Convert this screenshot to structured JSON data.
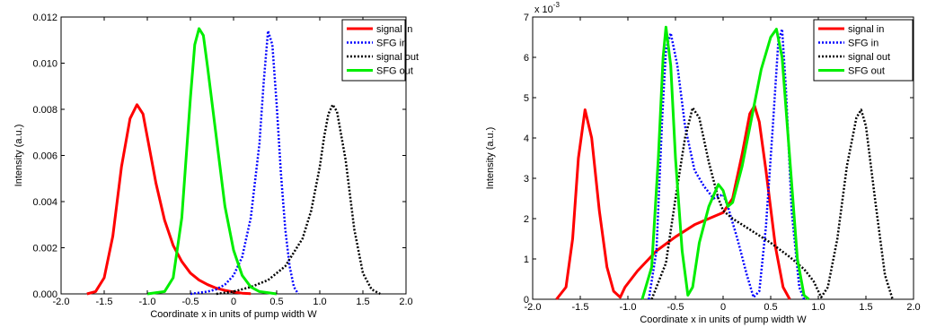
{
  "chart_data": [
    {
      "type": "line",
      "title": "",
      "xlabel": "Coordinate x in units of pump width W",
      "ylabel": "Intensity (a.u.)",
      "xlim": [
        -2.0,
        2.0
      ],
      "ylim": [
        0,
        0.012
      ],
      "x_ticks": [
        "-2.0",
        "-1.5",
        "-1.0",
        "-0.5",
        "0",
        "0.5",
        "1.0",
        "1.5",
        "2.0"
      ],
      "y_ticks": [
        "0.000",
        "0.002",
        "0.004",
        "0.006",
        "0.008",
        "0.010",
        "0.012"
      ],
      "y_exponent": "",
      "grid": false,
      "legend_position": "top-right",
      "series": [
        {
          "name": "signal in",
          "color": "#ff0000",
          "style": "solid",
          "points": [
            [
              -1.7,
              0
            ],
            [
              -1.6,
              0.0001
            ],
            [
              -1.5,
              0.0007
            ],
            [
              -1.4,
              0.0025
            ],
            [
              -1.3,
              0.0055
            ],
            [
              -1.2,
              0.0076
            ],
            [
              -1.12,
              0.0082
            ],
            [
              -1.05,
              0.0078
            ],
            [
              -1.0,
              0.0068
            ],
            [
              -0.9,
              0.0048
            ],
            [
              -0.8,
              0.0032
            ],
            [
              -0.7,
              0.0021
            ],
            [
              -0.6,
              0.0014
            ],
            [
              -0.5,
              0.0009
            ],
            [
              -0.4,
              0.0006
            ],
            [
              -0.3,
              0.0004
            ],
            [
              -0.2,
              0.00025
            ],
            [
              -0.1,
              0.00015
            ],
            [
              0.0,
              8e-05
            ],
            [
              0.1,
              3e-05
            ],
            [
              0.2,
              1e-05
            ]
          ]
        },
        {
          "name": "SFG in",
          "color": "#0000ff",
          "style": "dotted",
          "points": [
            [
              -0.5,
              0
            ],
            [
              -0.3,
              0.0001
            ],
            [
              -0.2,
              0.0002
            ],
            [
              -0.1,
              0.0004
            ],
            [
              0.0,
              0.0008
            ],
            [
              0.1,
              0.0016
            ],
            [
              0.2,
              0.0033
            ],
            [
              0.3,
              0.0065
            ],
            [
              0.35,
              0.0092
            ],
            [
              0.4,
              0.0114
            ],
            [
              0.45,
              0.0108
            ],
            [
              0.5,
              0.0082
            ],
            [
              0.55,
              0.0052
            ],
            [
              0.6,
              0.0028
            ],
            [
              0.65,
              0.0012
            ],
            [
              0.7,
              0.0003
            ],
            [
              0.75,
              0
            ]
          ]
        },
        {
          "name": "signal out",
          "color": "#000000",
          "style": "dotted",
          "points": [
            [
              -0.2,
              0
            ],
            [
              0.0,
              0.0001
            ],
            [
              0.2,
              0.0003
            ],
            [
              0.4,
              0.0006
            ],
            [
              0.6,
              0.0012
            ],
            [
              0.8,
              0.0024
            ],
            [
              0.9,
              0.0036
            ],
            [
              1.0,
              0.0055
            ],
            [
              1.05,
              0.0068
            ],
            [
              1.1,
              0.0078
            ],
            [
              1.15,
              0.0082
            ],
            [
              1.2,
              0.0079
            ],
            [
              1.3,
              0.0058
            ],
            [
              1.4,
              0.0028
            ],
            [
              1.5,
              0.0009
            ],
            [
              1.6,
              0.0002
            ],
            [
              1.7,
              0
            ]
          ]
        },
        {
          "name": "SFG out",
          "color": "#00ee00",
          "style": "solid",
          "points": [
            [
              -1.0,
              0
            ],
            [
              -0.8,
              0.0001
            ],
            [
              -0.7,
              0.0007
            ],
            [
              -0.6,
              0.0033
            ],
            [
              -0.5,
              0.0085
            ],
            [
              -0.45,
              0.0108
            ],
            [
              -0.4,
              0.0115
            ],
            [
              -0.35,
              0.0112
            ],
            [
              -0.3,
              0.0098
            ],
            [
              -0.2,
              0.0068
            ],
            [
              -0.1,
              0.0038
            ],
            [
              0.0,
              0.0019
            ],
            [
              0.1,
              0.0008
            ],
            [
              0.2,
              0.0003
            ],
            [
              0.3,
              0.0001
            ],
            [
              0.5,
              0
            ]
          ]
        }
      ]
    },
    {
      "type": "line",
      "title": "",
      "xlabel": "Coordinate x in units of pump width W",
      "ylabel": "Intensity (a.u.)",
      "xlim": [
        -2.0,
        2.0
      ],
      "ylim": [
        0,
        7
      ],
      "x_ticks": [
        "-2.0",
        "-1.5",
        "-1.0",
        "-0.5",
        "0",
        "0.5",
        "1.0",
        "1.5",
        "2.0"
      ],
      "y_ticks": [
        "0",
        "1",
        "2",
        "3",
        "4",
        "5",
        "6",
        "7"
      ],
      "y_exponent": "x 10",
      "y_exponent_power": "-3",
      "grid": false,
      "legend_position": "top-right",
      "series": [
        {
          "name": "signal in",
          "color": "#ff0000",
          "style": "solid",
          "points": [
            [
              -1.75,
              0
            ],
            [
              -1.65,
              0.3
            ],
            [
              -1.58,
              1.5
            ],
            [
              -1.52,
              3.5
            ],
            [
              -1.45,
              4.7
            ],
            [
              -1.38,
              4.0
            ],
            [
              -1.3,
              2.2
            ],
            [
              -1.22,
              0.8
            ],
            [
              -1.15,
              0.2
            ],
            [
              -1.08,
              0.05
            ],
            [
              -1.03,
              0.3
            ],
            [
              -0.9,
              0.7
            ],
            [
              -0.7,
              1.2
            ],
            [
              -0.5,
              1.55
            ],
            [
              -0.3,
              1.85
            ],
            [
              -0.1,
              2.05
            ],
            [
              0.0,
              2.15
            ],
            [
              0.1,
              2.5
            ],
            [
              0.2,
              3.6
            ],
            [
              0.28,
              4.6
            ],
            [
              0.33,
              4.8
            ],
            [
              0.38,
              4.4
            ],
            [
              0.45,
              3.2
            ],
            [
              0.55,
              1.3
            ],
            [
              0.63,
              0.3
            ],
            [
              0.7,
              0
            ]
          ]
        },
        {
          "name": "SFG in",
          "color": "#0000ff",
          "style": "dotted",
          "points": [
            [
              -0.78,
              0
            ],
            [
              -0.7,
              1.2
            ],
            [
              -0.64,
              4.5
            ],
            [
              -0.6,
              6.2
            ],
            [
              -0.55,
              6.6
            ],
            [
              -0.48,
              5.8
            ],
            [
              -0.4,
              4.3
            ],
            [
              -0.3,
              3.2
            ],
            [
              -0.2,
              2.8
            ],
            [
              -0.1,
              2.5
            ],
            [
              0.0,
              2.6
            ],
            [
              0.05,
              2.3
            ],
            [
              0.15,
              1.5
            ],
            [
              0.25,
              0.6
            ],
            [
              0.32,
              0.05
            ],
            [
              0.38,
              0.2
            ],
            [
              0.45,
              1.8
            ],
            [
              0.52,
              4.2
            ],
            [
              0.58,
              6.4
            ],
            [
              0.62,
              6.7
            ],
            [
              0.66,
              5.2
            ],
            [
              0.72,
              2.2
            ],
            [
              0.8,
              0.3
            ],
            [
              0.85,
              0
            ]
          ]
        },
        {
          "name": "signal out",
          "color": "#000000",
          "style": "dotted",
          "points": [
            [
              -0.75,
              0
            ],
            [
              -0.6,
              0.9
            ],
            [
              -0.5,
              2.5
            ],
            [
              -0.4,
              4.0
            ],
            [
              -0.32,
              4.75
            ],
            [
              -0.25,
              4.5
            ],
            [
              -0.15,
              3.4
            ],
            [
              -0.05,
              2.5
            ],
            [
              0.0,
              2.2
            ],
            [
              0.1,
              2.0
            ],
            [
              0.3,
              1.7
            ],
            [
              0.5,
              1.4
            ],
            [
              0.7,
              1.05
            ],
            [
              0.85,
              0.75
            ],
            [
              0.95,
              0.45
            ],
            [
              1.03,
              0.05
            ],
            [
              1.1,
              0.3
            ],
            [
              1.2,
              1.5
            ],
            [
              1.3,
              3.3
            ],
            [
              1.4,
              4.5
            ],
            [
              1.45,
              4.7
            ],
            [
              1.5,
              4.3
            ],
            [
              1.6,
              2.4
            ],
            [
              1.7,
              0.6
            ],
            [
              1.78,
              0
            ]
          ]
        },
        {
          "name": "SFG out",
          "color": "#00ee00",
          "style": "solid",
          "points": [
            [
              -0.85,
              0
            ],
            [
              -0.75,
              0.8
            ],
            [
              -0.68,
              3.5
            ],
            [
              -0.63,
              6.0
            ],
            [
              -0.6,
              6.75
            ],
            [
              -0.55,
              5.8
            ],
            [
              -0.5,
              3.5
            ],
            [
              -0.43,
              1.2
            ],
            [
              -0.37,
              0.1
            ],
            [
              -0.32,
              0.3
            ],
            [
              -0.25,
              1.4
            ],
            [
              -0.15,
              2.3
            ],
            [
              -0.05,
              2.85
            ],
            [
              0.0,
              2.7
            ],
            [
              0.05,
              2.3
            ],
            [
              0.1,
              2.4
            ],
            [
              0.2,
              3.3
            ],
            [
              0.3,
              4.5
            ],
            [
              0.4,
              5.7
            ],
            [
              0.5,
              6.5
            ],
            [
              0.56,
              6.7
            ],
            [
              0.62,
              6.0
            ],
            [
              0.7,
              3.5
            ],
            [
              0.78,
              1.0
            ],
            [
              0.85,
              0.1
            ],
            [
              0.9,
              0
            ]
          ]
        }
      ]
    }
  ]
}
